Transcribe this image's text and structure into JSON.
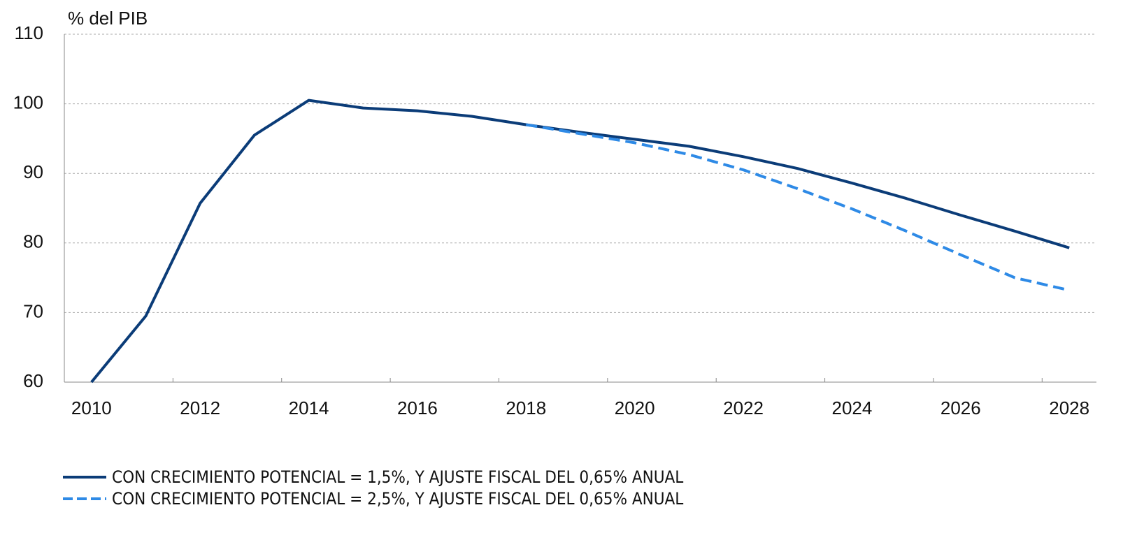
{
  "chart_data": {
    "type": "line",
    "y_axis_label": "% del PIB",
    "categories": [
      "2010",
      null,
      "2012",
      null,
      "2014",
      null,
      "2016",
      null,
      "2018",
      null,
      "2020",
      null,
      "2022",
      null,
      "2024",
      null,
      "2026",
      null,
      "2028"
    ],
    "series": [
      {
        "name": "CON CRECIMIENTO POTENCIAL = 1,5%, Y AJUSTE FISCAL DEL 0,65% ANUAL",
        "color": "#0b3c78",
        "style": "solid",
        "values": [
          60.0,
          69.5,
          85.7,
          95.5,
          100.5,
          99.4,
          99.0,
          98.2,
          97.0,
          95.9,
          94.9,
          93.9,
          92.4,
          90.7,
          88.6,
          86.4,
          84.0,
          81.7,
          79.3
        ]
      },
      {
        "name": "CON CRECIMIENTO POTENCIAL = 2,5%, Y AJUSTE FISCAL DEL 0,65% ANUAL",
        "color": "#2e8ae6",
        "style": "dashed",
        "values": [
          null,
          null,
          null,
          null,
          null,
          null,
          null,
          null,
          97.0,
          95.7,
          94.4,
          92.7,
          90.5,
          87.8,
          84.9,
          81.7,
          78.3,
          75.0,
          73.2
        ]
      }
    ],
    "ylim": [
      60,
      110
    ],
    "yticks": [
      60,
      70,
      80,
      90,
      100,
      110
    ],
    "grid": true
  }
}
